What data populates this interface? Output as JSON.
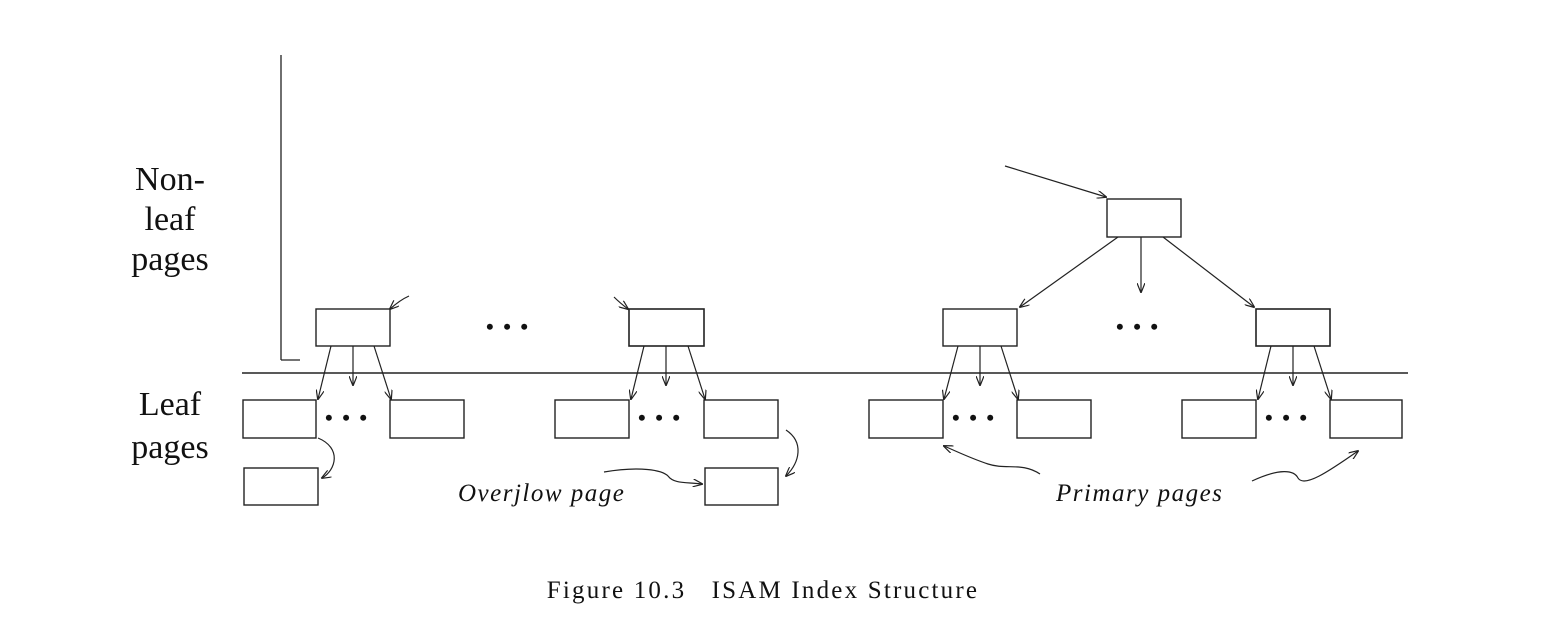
{
  "diagram": {
    "labels": {
      "nonleaf_line1": "Non-leaf",
      "nonleaf_line2": "pages",
      "leaf_line1": "Leaf",
      "leaf_line2": "pages",
      "overflow": "Overjlow page",
      "primary": "Primary pages"
    },
    "caption": "Figure 10.3   ISAM Index Structure",
    "ellipsis": "• • •"
  }
}
